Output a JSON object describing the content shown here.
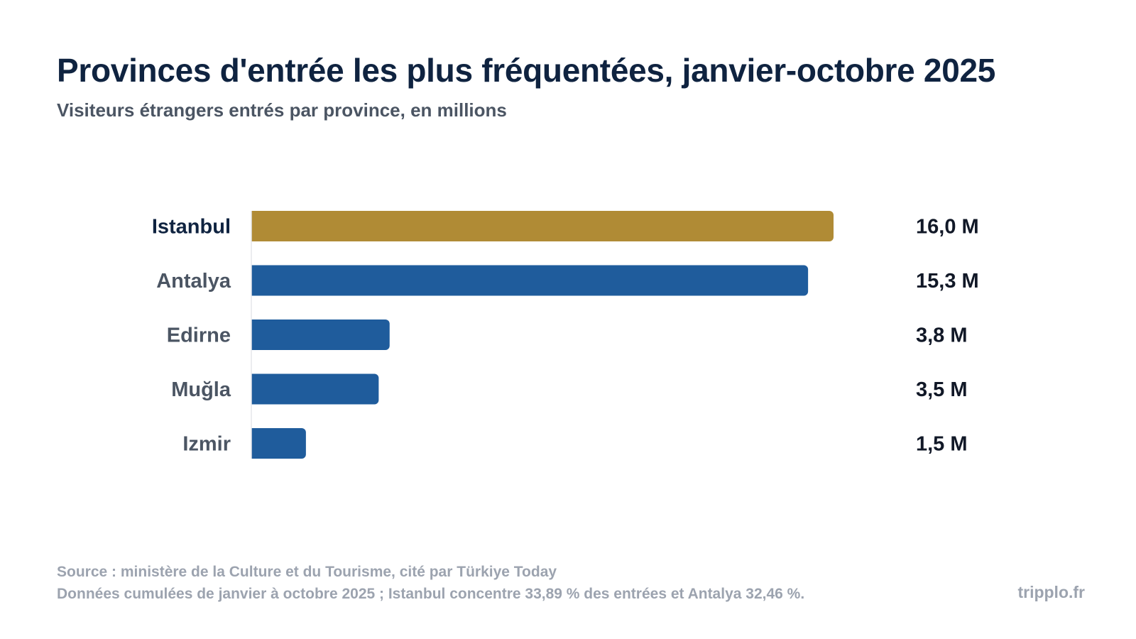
{
  "header": {
    "title": "Provinces d'entrée les plus fréquentées, janvier-octobre 2025",
    "subtitle": "Visiteurs étrangers entrés par province, en millions"
  },
  "chart_data": {
    "type": "bar",
    "orientation": "horizontal",
    "title": "Provinces d'entrée les plus fréquentées, janvier-octobre 2025",
    "subtitle": "Visiteurs étrangers entrés par province, en millions",
    "categories": [
      "Istanbul",
      "Antalya",
      "Edirne",
      "Muğla",
      "Izmir"
    ],
    "values": [
      16.0,
      15.3,
      3.8,
      3.5,
      1.5
    ],
    "value_labels": [
      "16,0 M",
      "15,3 M",
      "3,8 M",
      "3,5 M",
      "1,5 M"
    ],
    "highlight_index": 0,
    "colors": {
      "highlight": "#b08b35",
      "default": "#1f5c9c"
    },
    "xlim": [
      0,
      16.0
    ],
    "grid": false,
    "legend": "none"
  },
  "footer": {
    "source": "Source : ministère de la Culture et du Tourisme, cité par Türkiye Today",
    "note": "Données cumulées de janvier à octobre 2025 ; Istanbul concentre 33,89 % des entrées et Antalya 32,46 %.",
    "brand": "tripplo.fr"
  }
}
